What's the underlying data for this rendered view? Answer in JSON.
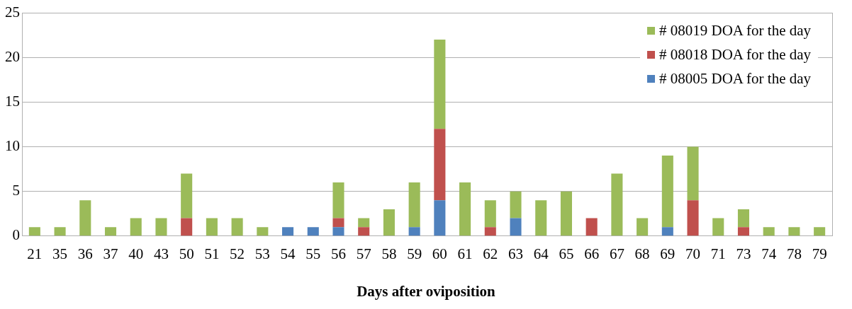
{
  "chart_data": {
    "type": "bar",
    "stacked": true,
    "xlabel": "Days after oviposition",
    "categories": [
      "21",
      "35",
      "36",
      "37",
      "40",
      "43",
      "50",
      "51",
      "52",
      "53",
      "54",
      "55",
      "56",
      "57",
      "58",
      "59",
      "60",
      "61",
      "62",
      "63",
      "64",
      "65",
      "66",
      "67",
      "68",
      "69",
      "70",
      "71",
      "73",
      "74",
      "78",
      "79"
    ],
    "series": [
      {
        "name": "# 08005 DOA for the day",
        "color": "#4f81bd",
        "values": [
          0,
          0,
          0,
          0,
          0,
          0,
          0,
          0,
          0,
          0,
          1,
          1,
          1,
          0,
          0,
          1,
          4,
          0,
          0,
          2,
          0,
          0,
          0,
          0,
          0,
          1,
          0,
          0,
          0,
          0,
          0,
          0
        ]
      },
      {
        "name": "# 08018 DOA for the day",
        "color": "#c0504d",
        "values": [
          0,
          0,
          0,
          0,
          0,
          0,
          2,
          0,
          0,
          0,
          0,
          0,
          1,
          1,
          0,
          0,
          8,
          0,
          1,
          0,
          0,
          0,
          2,
          0,
          0,
          0,
          4,
          0,
          1,
          0,
          0,
          0
        ]
      },
      {
        "name": "# 08019 DOA for the day",
        "color": "#9bbb59",
        "values": [
          1,
          1,
          4,
          1,
          2,
          2,
          5,
          2,
          2,
          1,
          0,
          0,
          4,
          1,
          3,
          5,
          10,
          6,
          3,
          3,
          4,
          5,
          0,
          7,
          2,
          8,
          6,
          2,
          2,
          1,
          1,
          1
        ]
      }
    ],
    "ylim": [
      0,
      25
    ],
    "yticks": [
      0,
      5,
      10,
      15,
      20,
      25
    ],
    "grid": "y",
    "legend": "top right"
  }
}
